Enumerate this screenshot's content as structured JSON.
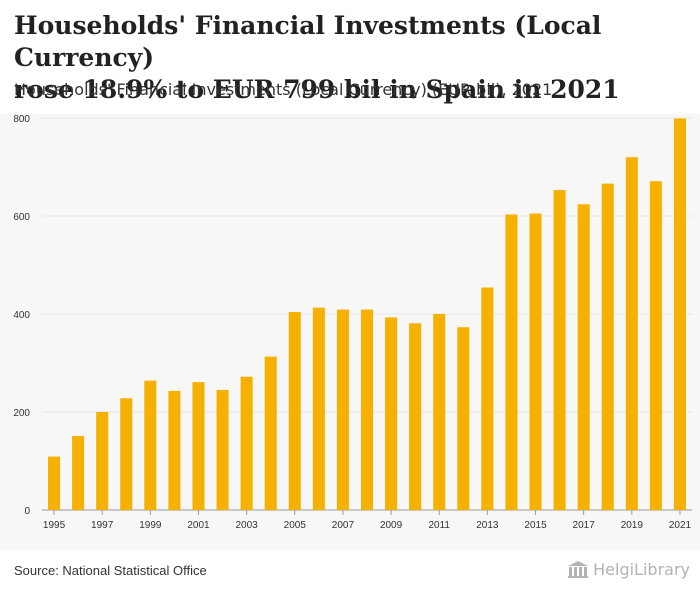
{
  "header": {
    "title_line1": "Households' Financial Investments (Local Currency)",
    "title_line2": "rose 18.9% to EUR 799 bil in Spain in 2021",
    "subtitle": "Households' Financial Investments (Local Currency) (EUR bil), 2021"
  },
  "footer": {
    "source": "Source: National Statistical Office",
    "brand": "HelgiLibrary"
  },
  "colors": {
    "bar": "#f5b000",
    "background": "#f7f7f7",
    "grid": "#e6e6e6",
    "axis": "#999999"
  },
  "chart_data": {
    "type": "bar",
    "title": "Households' Financial Investments (Local Currency) (EUR bil), 2021",
    "xlabel": "",
    "ylabel": "",
    "ylim": [
      0,
      800
    ],
    "yticks": [
      0,
      200,
      400,
      600,
      800
    ],
    "categories": [
      "1995",
      "1996",
      "1997",
      "1998",
      "1999",
      "2000",
      "2001",
      "2002",
      "2003",
      "2004",
      "2005",
      "2006",
      "2007",
      "2008",
      "2009",
      "2010",
      "2011",
      "2012",
      "2013",
      "2014",
      "2015",
      "2016",
      "2017",
      "2018",
      "2019",
      "2020",
      "2021"
    ],
    "xtick_labels": [
      "1995",
      "1997",
      "1999",
      "2001",
      "2003",
      "2005",
      "2007",
      "2009",
      "2011",
      "2013",
      "2015",
      "2017",
      "2019",
      "2021"
    ],
    "values": [
      109,
      151,
      200,
      228,
      264,
      243,
      261,
      245,
      272,
      313,
      404,
      413,
      409,
      409,
      393,
      381,
      400,
      373,
      454,
      603,
      605,
      653,
      624,
      666,
      720,
      671,
      799
    ]
  }
}
